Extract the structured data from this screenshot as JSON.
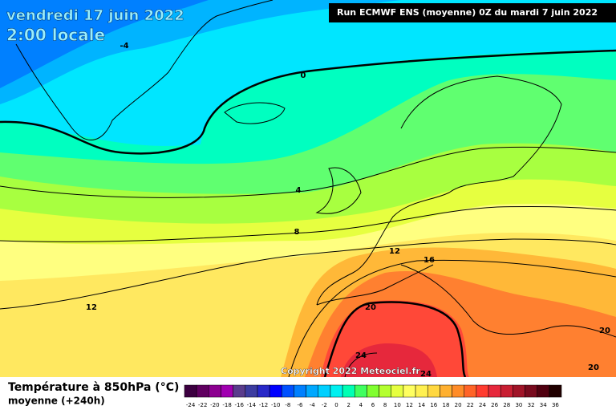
{
  "header": {
    "title": "vendredi 17 juin 2022",
    "time": "2:00 locale",
    "run_info": "Run ECMWF ENS (moyenne) 0Z du mardi 7 juin 2022"
  },
  "contour_labels": [
    "-4",
    "0",
    "4",
    "8",
    "12",
    "12",
    "16",
    "20",
    "24",
    "24",
    "20",
    "20"
  ],
  "footer": {
    "legend_title": "Température à 850hPa (°C)",
    "subtitle": "moyenne   (+240h)",
    "copyright": "Copyright 2022 Meteociel.fr"
  },
  "legend": {
    "labels": [
      "-24",
      "-22",
      "-20",
      "-18",
      "-16",
      "-14",
      "-12",
      "-10",
      "-8",
      "-6",
      "-4",
      "-2",
      "0",
      "2",
      "4",
      "6",
      "8",
      "10",
      "12",
      "14",
      "16",
      "18",
      "20",
      "22",
      "24",
      "26",
      "28",
      "30",
      "32",
      "34",
      "36"
    ],
    "colors": [
      "#3c0040",
      "#600060",
      "#8c0090",
      "#a000b0",
      "#5a3c8c",
      "#3c3ca0",
      "#2828c8",
      "#0000ff",
      "#0050ff",
      "#0080ff",
      "#00a8ff",
      "#00d0ff",
      "#00f0f0",
      "#00ffb4",
      "#40ff60",
      "#80ff30",
      "#b4ff30",
      "#e6ff40",
      "#ffff60",
      "#fff050",
      "#ffd840",
      "#ffb030",
      "#ff8c28",
      "#ff6428",
      "#ff3c30",
      "#e6283c",
      "#c81e32",
      "#a01428",
      "#780a1e",
      "#500010",
      "#200000"
    ]
  }
}
